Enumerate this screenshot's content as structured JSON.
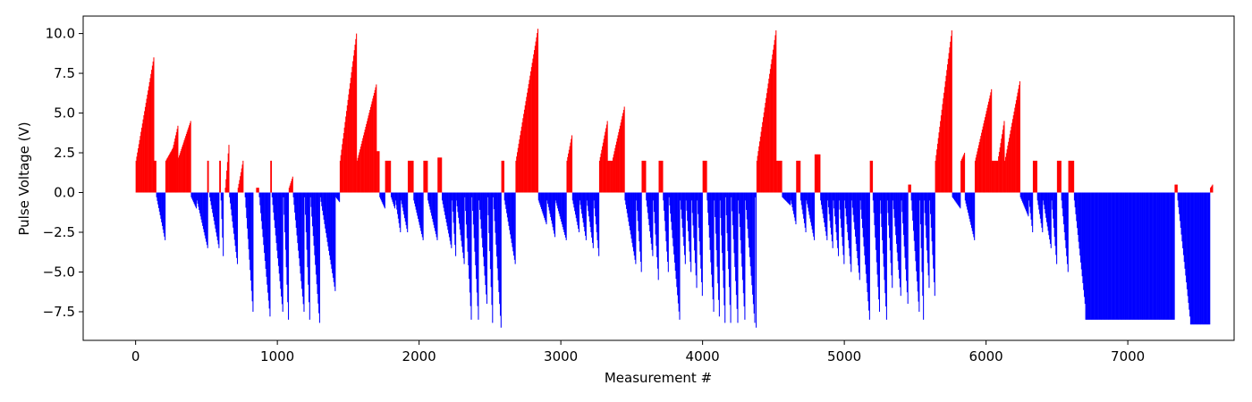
{
  "chart_data": {
    "type": "bar",
    "title": "",
    "xlabel": "Measurement #",
    "ylabel": "Pulse Voltage (V)",
    "xlim": [
      -370,
      7750
    ],
    "ylim": [
      -9.3,
      11.1
    ],
    "xticks": [
      0,
      1000,
      2000,
      3000,
      4000,
      5000,
      6000,
      7000
    ],
    "yticks": [
      -7.5,
      -5.0,
      -2.5,
      0.0,
      2.5,
      5.0,
      7.5,
      10.0
    ],
    "ytick_labels": [
      "−7.5",
      "−5.0",
      "−2.5",
      "0.0",
      "2.5",
      "5.0",
      "7.5",
      "10.0"
    ],
    "grid": false,
    "legend": "none",
    "colors": {
      "positive": "#ff0000",
      "negative": "#0000ff"
    },
    "series": [
      {
        "values": [
          [
            0,
            130,
            2,
            8.5
          ],
          [
            130,
            145,
            2,
            2
          ],
          [
            145,
            210,
            -0.3,
            -3.0
          ],
          [
            210,
            290,
            2,
            3.2
          ],
          [
            240,
            300,
            2,
            4.2
          ],
          [
            300,
            390,
            2.2,
            4.5
          ],
          [
            390,
            430,
            -0.3,
            -1.0
          ],
          [
            430,
            510,
            -0.5,
            -3.5
          ],
          [
            505,
            515,
            2,
            2
          ],
          [
            520,
            590,
            -0.3,
            -3.5
          ],
          [
            590,
            600,
            2,
            2
          ],
          [
            600,
            620,
            -0.5,
            -4.0
          ],
          [
            630,
            660,
            0.3,
            3.0
          ],
          [
            660,
            720,
            -0.3,
            -4.5
          ],
          [
            720,
            760,
            0.3,
            2.0
          ],
          [
            770,
            830,
            -0.3,
            -7.5
          ],
          [
            850,
            870,
            0.3,
            0.3
          ],
          [
            870,
            950,
            -0.3,
            -7.8
          ],
          [
            950,
            960,
            2,
            2
          ],
          [
            960,
            1040,
            -0.3,
            -7.5
          ],
          [
            1040,
            1080,
            -0.3,
            -8.0
          ],
          [
            1080,
            1110,
            0.3,
            1.0
          ],
          [
            1110,
            1190,
            -0.3,
            -7.5
          ],
          [
            1190,
            1230,
            -0.3,
            -8.0
          ],
          [
            1230,
            1300,
            -0.3,
            -8.2
          ],
          [
            1300,
            1410,
            -0.3,
            -6.2
          ],
          [
            1410,
            1440,
            -0.3,
            -0.6
          ],
          [
            1440,
            1560,
            2,
            10.0
          ],
          [
            1560,
            1700,
            2,
            6.8
          ],
          [
            1700,
            1720,
            2.6,
            2.6
          ],
          [
            1720,
            1760,
            -0.3,
            -1.0
          ],
          [
            1760,
            1800,
            2,
            2
          ],
          [
            1800,
            1830,
            -0.3,
            -1.0
          ],
          [
            1830,
            1870,
            -0.5,
            -2.5
          ],
          [
            1870,
            1920,
            -0.5,
            -2.5
          ],
          [
            1920,
            1960,
            2,
            2
          ],
          [
            1960,
            2030,
            -0.5,
            -3.0
          ],
          [
            2030,
            2060,
            2,
            2
          ],
          [
            2060,
            2130,
            -0.5,
            -3.0
          ],
          [
            2130,
            2160,
            2.2,
            2.2
          ],
          [
            2160,
            2230,
            -0.5,
            -3.5
          ],
          [
            2230,
            2260,
            -0.5,
            -4.0
          ],
          [
            2260,
            2320,
            -0.5,
            -4.5
          ],
          [
            2320,
            2370,
            -0.3,
            -8.0
          ],
          [
            2370,
            2420,
            -0.3,
            -8.0
          ],
          [
            2420,
            2480,
            -0.5,
            -7.0
          ],
          [
            2480,
            2520,
            -0.3,
            -8.2
          ],
          [
            2520,
            2580,
            -0.3,
            -8.5
          ],
          [
            2580,
            2600,
            2,
            2
          ],
          [
            2600,
            2680,
            -0.5,
            -4.5
          ],
          [
            2680,
            2840,
            2,
            10.3
          ],
          [
            2840,
            2900,
            -0.5,
            -2.0
          ],
          [
            2900,
            2960,
            -0.5,
            -2.8
          ],
          [
            2960,
            3040,
            -0.5,
            -3.0
          ],
          [
            3040,
            3080,
            2,
            3.6
          ],
          [
            3080,
            3130,
            -0.5,
            -2.5
          ],
          [
            3130,
            3180,
            -0.5,
            -3.0
          ],
          [
            3180,
            3230,
            -0.5,
            -3.5
          ],
          [
            3230,
            3270,
            -0.5,
            -4.0
          ],
          [
            3270,
            3330,
            2,
            4.5
          ],
          [
            3330,
            3360,
            2,
            2
          ],
          [
            3360,
            3450,
            2,
            5.4
          ],
          [
            3450,
            3530,
            -0.5,
            -4.5
          ],
          [
            3530,
            3570,
            -0.5,
            -5.0
          ],
          [
            3570,
            3600,
            2,
            2
          ],
          [
            3600,
            3650,
            -0.5,
            -4.0
          ],
          [
            3650,
            3690,
            -0.5,
            -5.5
          ],
          [
            3690,
            3720,
            2,
            2
          ],
          [
            3720,
            3760,
            -0.5,
            -5.0
          ],
          [
            3760,
            3840,
            -0.3,
            -8.0
          ],
          [
            3840,
            3880,
            -0.5,
            -4.5
          ],
          [
            3880,
            3920,
            -0.5,
            -5.0
          ],
          [
            3920,
            3960,
            -0.5,
            -6.0
          ],
          [
            3960,
            4000,
            -0.5,
            -6.5
          ],
          [
            4000,
            4030,
            2,
            2
          ],
          [
            4030,
            4080,
            -0.5,
            -7.5
          ],
          [
            4080,
            4120,
            -0.5,
            -7.8
          ],
          [
            4120,
            4160,
            -0.5,
            -8.2
          ],
          [
            4160,
            4200,
            -0.3,
            -8.2
          ],
          [
            4200,
            4250,
            -0.3,
            -8.2
          ],
          [
            4250,
            4300,
            -0.5,
            -8.0
          ],
          [
            4300,
            4370,
            -0.5,
            -8.2
          ],
          [
            4370,
            4380,
            -0.3,
            -8.5
          ],
          [
            4380,
            4520,
            2,
            10.2
          ],
          [
            4520,
            4560,
            2,
            2
          ],
          [
            4560,
            4620,
            -0.3,
            -0.8
          ],
          [
            4620,
            4660,
            -0.5,
            -2.0
          ],
          [
            4660,
            4690,
            2,
            2
          ],
          [
            4690,
            4730,
            -0.5,
            -2.5
          ],
          [
            4730,
            4790,
            -0.5,
            -3.0
          ],
          [
            4790,
            4830,
            2.4,
            2.4
          ],
          [
            4830,
            4880,
            -0.5,
            -3.0
          ],
          [
            4880,
            4920,
            -0.5,
            -3.5
          ],
          [
            4920,
            4960,
            -0.5,
            -4.0
          ],
          [
            4960,
            5000,
            -0.5,
            -4.5
          ],
          [
            5000,
            5050,
            -0.5,
            -5.0
          ],
          [
            5050,
            5110,
            -0.5,
            -5.5
          ],
          [
            5110,
            5180,
            -0.5,
            -8.0
          ],
          [
            5180,
            5200,
            2,
            2
          ],
          [
            5200,
            5250,
            -0.5,
            -7.5
          ],
          [
            5250,
            5300,
            -0.5,
            -8.0
          ],
          [
            5300,
            5340,
            -0.5,
            -6.0
          ],
          [
            5340,
            5400,
            -0.5,
            -6.5
          ],
          [
            5400,
            5450,
            -0.5,
            -7.0
          ],
          [
            5450,
            5470,
            0.5,
            0.5
          ],
          [
            5470,
            5530,
            -0.5,
            -7.5
          ],
          [
            5530,
            5560,
            -0.5,
            -8.0
          ],
          [
            5560,
            5600,
            -0.5,
            -6.0
          ],
          [
            5600,
            5640,
            -0.5,
            -6.5
          ],
          [
            5640,
            5760,
            2,
            10.2
          ],
          [
            5760,
            5820,
            -0.3,
            -1.0
          ],
          [
            5820,
            5850,
            2,
            2.5
          ],
          [
            5850,
            5920,
            -0.5,
            -3.0
          ],
          [
            5920,
            6040,
            2,
            6.5
          ],
          [
            6040,
            6080,
            2,
            2
          ],
          [
            6080,
            6130,
            2,
            4.5
          ],
          [
            6130,
            6240,
            2,
            7.0
          ],
          [
            6240,
            6300,
            -0.3,
            -1.5
          ],
          [
            6300,
            6330,
            -0.5,
            -2.5
          ],
          [
            6330,
            6360,
            2,
            2
          ],
          [
            6360,
            6400,
            -0.5,
            -2.5
          ],
          [
            6400,
            6460,
            -0.5,
            -3.5
          ],
          [
            6460,
            6500,
            -0.5,
            -4.5
          ],
          [
            6500,
            6530,
            2,
            2
          ],
          [
            6530,
            6580,
            -0.5,
            -5.0
          ],
          [
            6580,
            6620,
            2,
            2
          ],
          [
            6620,
            6700,
            -0.5,
            -7.0
          ],
          [
            6700,
            7330,
            -8.0,
            -8.0
          ],
          [
            7330,
            7350,
            0.5,
            0.5
          ],
          [
            7350,
            7440,
            -0.5,
            -7.8
          ],
          [
            7440,
            7580,
            -8.3,
            -8.3
          ],
          [
            7580,
            7600,
            0.3,
            0.5
          ]
        ]
      }
    ]
  }
}
